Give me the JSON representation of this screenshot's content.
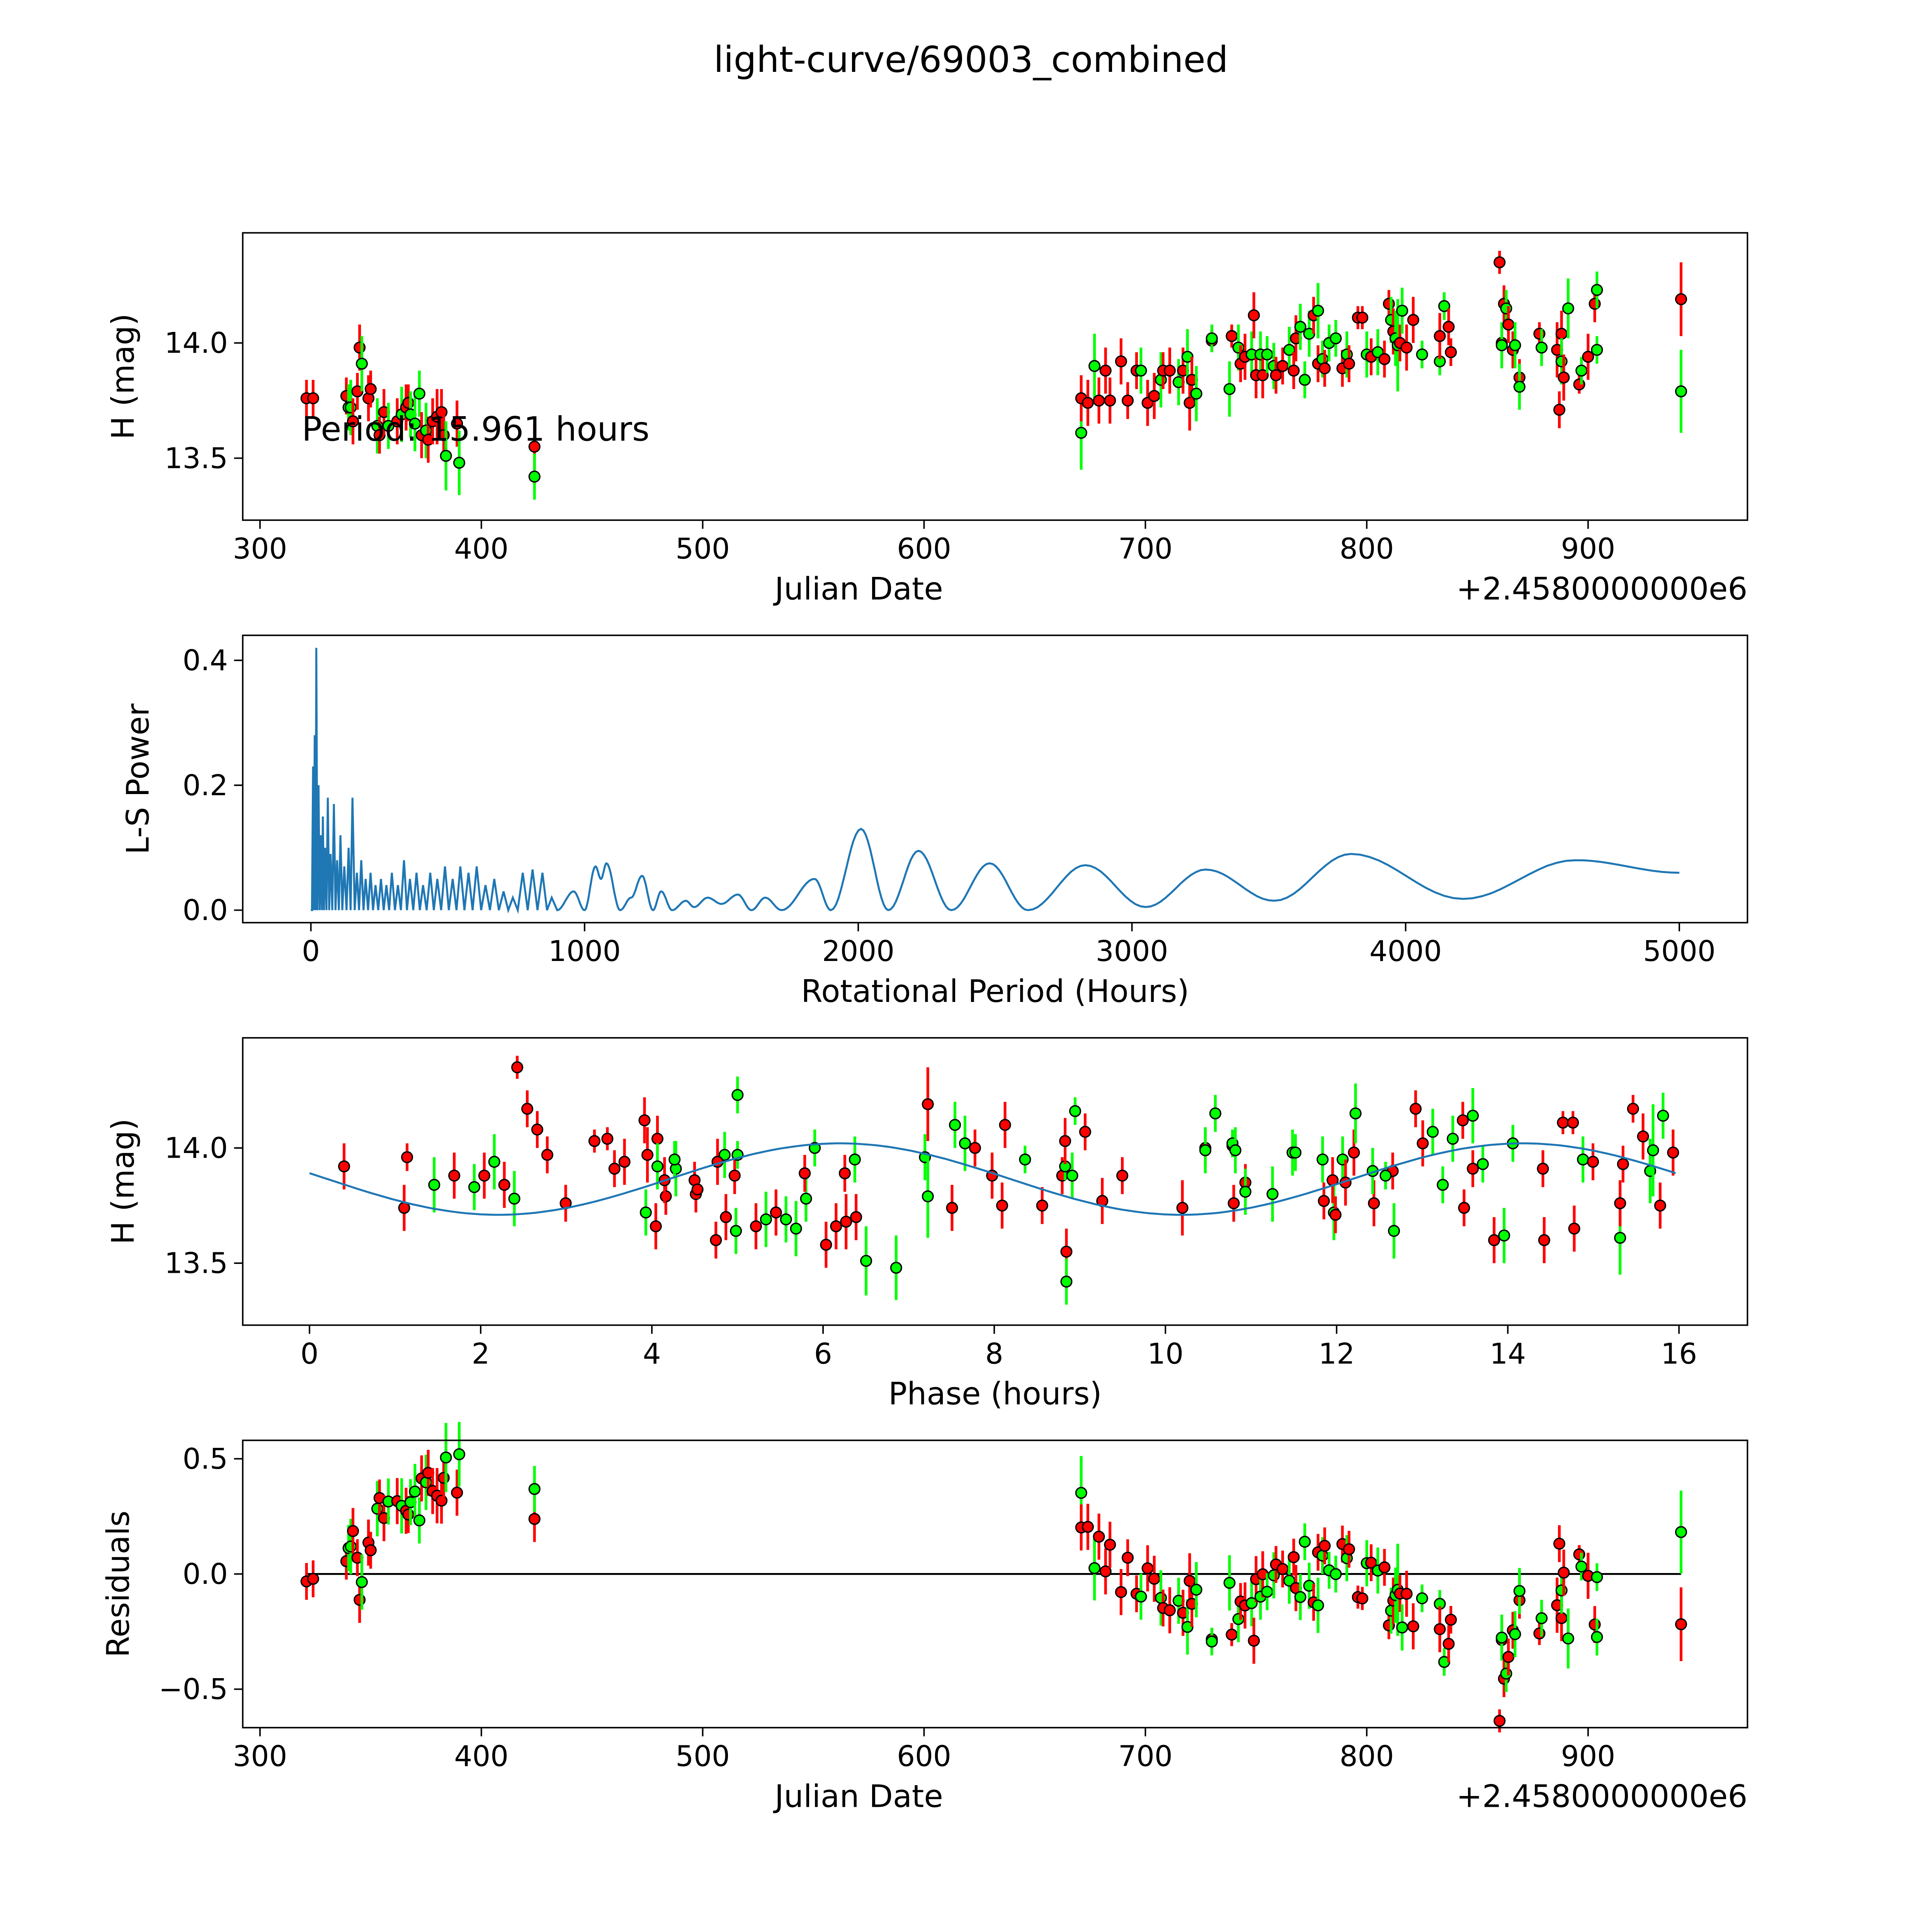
{
  "title": "light-curve/69003_combined",
  "colors": {
    "r": "#ff0000",
    "g": "#00ff00",
    "line": "#1f77b4"
  },
  "chart_data": [
    {
      "type": "scatter",
      "name": "light-curve",
      "xlabel": "Julian Date",
      "ylabel": "H (mag)",
      "offset_text": "+2.4580000000e6",
      "annotation": "Period: 15.961 hours",
      "annotation_at": [
        320,
        13.63
      ],
      "xlim": [
        292.2,
        972
      ],
      "ylim": [
        13.231,
        14.478
      ],
      "xticks": [
        300,
        400,
        500,
        600,
        700,
        800,
        900
      ],
      "xtick_labels": [
        "300",
        "400",
        "500",
        "600",
        "700",
        "800",
        "900"
      ],
      "yticks": [
        13.5,
        14.0
      ],
      "ytick_labels": [
        "13.5",
        "14.0"
      ],
      "points": [
        [
          321,
          13.76,
          0.08,
          "r"
        ],
        [
          324,
          13.76,
          0.08,
          "r"
        ],
        [
          339,
          13.77,
          0.08,
          "r"
        ],
        [
          340,
          13.72,
          0.1,
          "g"
        ],
        [
          341,
          13.72,
          0.12,
          "g"
        ],
        [
          342,
          13.66,
          0.1,
          "r"
        ],
        [
          344,
          13.79,
          0.08,
          "r"
        ],
        [
          345,
          13.98,
          0.1,
          "r"
        ],
        [
          346,
          13.91,
          0.12,
          "g"
        ],
        [
          349,
          13.76,
          0.1,
          "r"
        ],
        [
          350,
          13.8,
          0.08,
          "r"
        ],
        [
          353,
          13.64,
          0.12,
          "g"
        ],
        [
          354,
          13.6,
          0.08,
          "r"
        ],
        [
          356,
          13.7,
          0.1,
          "r"
        ],
        [
          358,
          13.64,
          0.1,
          "g"
        ],
        [
          362,
          13.66,
          0.1,
          "r"
        ],
        [
          364,
          13.69,
          0.12,
          "g"
        ],
        [
          366,
          13.72,
          0.1,
          "r"
        ],
        [
          367,
          13.74,
          0.08,
          "r"
        ],
        [
          368,
          13.69,
          0.1,
          "g"
        ],
        [
          370,
          13.65,
          0.12,
          "g"
        ],
        [
          372,
          13.78,
          0.1,
          "g"
        ],
        [
          373,
          13.6,
          0.1,
          "r"
        ],
        [
          375,
          13.62,
          0.12,
          "g"
        ],
        [
          376,
          13.58,
          0.1,
          "r"
        ],
        [
          378,
          13.66,
          0.1,
          "r"
        ],
        [
          380,
          13.68,
          0.12,
          "r"
        ],
        [
          382,
          13.7,
          0.1,
          "r"
        ],
        [
          383,
          13.6,
          0.1,
          "r"
        ],
        [
          384,
          13.51,
          0.15,
          "g"
        ],
        [
          389,
          13.65,
          0.1,
          "r"
        ],
        [
          390,
          13.48,
          0.14,
          "g"
        ],
        [
          424,
          13.55,
          0.1,
          "r"
        ],
        [
          424,
          13.42,
          0.1,
          "g"
        ],
        [
          671,
          13.61,
          0.16,
          "g"
        ],
        [
          671,
          13.76,
          0.1,
          "r"
        ],
        [
          674,
          13.74,
          0.1,
          "r"
        ],
        [
          677,
          13.9,
          0.14,
          "g"
        ],
        [
          679,
          13.75,
          0.1,
          "r"
        ],
        [
          682,
          13.88,
          0.1,
          "r"
        ],
        [
          684,
          13.75,
          0.1,
          "r"
        ],
        [
          689,
          13.92,
          0.1,
          "r"
        ],
        [
          692,
          13.75,
          0.08,
          "r"
        ],
        [
          696,
          13.88,
          0.08,
          "r"
        ],
        [
          698,
          13.88,
          0.1,
          "g"
        ],
        [
          701,
          13.74,
          0.1,
          "r"
        ],
        [
          704,
          13.77,
          0.1,
          "r"
        ],
        [
          707,
          13.84,
          0.12,
          "g"
        ],
        [
          708,
          13.88,
          0.08,
          "r"
        ],
        [
          711,
          13.88,
          0.1,
          "r"
        ],
        [
          715,
          13.83,
          0.1,
          "g"
        ],
        [
          717,
          13.88,
          0.1,
          "r"
        ],
        [
          719,
          13.94,
          0.12,
          "g"
        ],
        [
          720,
          13.74,
          0.12,
          "r"
        ],
        [
          721,
          13.84,
          0.1,
          "r"
        ],
        [
          723,
          13.78,
          0.12,
          "g"
        ],
        [
          730,
          14.01,
          0.05,
          "r"
        ],
        [
          730,
          14.02,
          0.06,
          "g"
        ],
        [
          738,
          13.8,
          0.12,
          "g"
        ],
        [
          739,
          14.03,
          0.05,
          "r"
        ],
        [
          742,
          13.98,
          0.1,
          "g"
        ],
        [
          743,
          13.91,
          0.08,
          "r"
        ],
        [
          745,
          13.94,
          0.1,
          "r"
        ],
        [
          748,
          13.95,
          0.1,
          "g"
        ],
        [
          749,
          14.12,
          0.1,
          "r"
        ],
        [
          750,
          13.86,
          0.1,
          "r"
        ],
        [
          752,
          13.95,
          0.1,
          "g"
        ],
        [
          753,
          13.86,
          0.1,
          "r"
        ],
        [
          755,
          13.95,
          0.08,
          "g"
        ],
        [
          758,
          13.9,
          0.1,
          "g"
        ],
        [
          759,
          13.86,
          0.08,
          "r"
        ],
        [
          762,
          13.9,
          0.08,
          "r"
        ],
        [
          765,
          13.97,
          0.1,
          "g"
        ],
        [
          767,
          13.88,
          0.08,
          "r"
        ],
        [
          768,
          14.02,
          0.1,
          "r"
        ],
        [
          770,
          14.07,
          0.1,
          "g"
        ],
        [
          772,
          13.84,
          0.08,
          "g"
        ],
        [
          774,
          14.04,
          0.1,
          "g"
        ],
        [
          776,
          14.12,
          0.08,
          "r"
        ],
        [
          778,
          14.14,
          0.12,
          "g"
        ],
        [
          778,
          13.91,
          0.08,
          "r"
        ],
        [
          780,
          13.93,
          0.08,
          "g"
        ],
        [
          781,
          13.89,
          0.08,
          "r"
        ],
        [
          783,
          14.0,
          0.08,
          "g"
        ],
        [
          786,
          14.02,
          0.08,
          "g"
        ],
        [
          789,
          13.89,
          0.08,
          "r"
        ],
        [
          791,
          13.95,
          0.1,
          "g"
        ],
        [
          792,
          13.91,
          0.08,
          "r"
        ],
        [
          796,
          14.11,
          0.05,
          "r"
        ],
        [
          798,
          14.11,
          0.05,
          "r"
        ],
        [
          800,
          13.95,
          0.1,
          "g"
        ],
        [
          802,
          13.94,
          0.08,
          "r"
        ],
        [
          805,
          13.96,
          0.1,
          "g"
        ],
        [
          808,
          13.93,
          0.08,
          "r"
        ],
        [
          810,
          14.17,
          0.06,
          "r"
        ],
        [
          811,
          14.1,
          0.1,
          "g"
        ],
        [
          812,
          14.05,
          0.1,
          "r"
        ],
        [
          813,
          14.02,
          0.12,
          "g"
        ],
        [
          814,
          13.99,
          0.2,
          "g"
        ],
        [
          815,
          14.0,
          0.08,
          "r"
        ],
        [
          816,
          14.14,
          0.1,
          "g"
        ],
        [
          818,
          13.98,
          0.1,
          "r"
        ],
        [
          821,
          14.1,
          0.1,
          "r"
        ],
        [
          825,
          13.95,
          0.06,
          "g"
        ],
        [
          833,
          13.92,
          0.06,
          "g"
        ],
        [
          833,
          14.03,
          0.1,
          "r"
        ],
        [
          835,
          14.16,
          0.06,
          "g"
        ],
        [
          837,
          14.07,
          0.08,
          "r"
        ],
        [
          838,
          13.96,
          0.06,
          "r"
        ],
        [
          860,
          14.35,
          0.05,
          "r"
        ],
        [
          861,
          14.0,
          0.08,
          "r"
        ],
        [
          861,
          13.99,
          0.1,
          "g"
        ],
        [
          862,
          14.17,
          0.08,
          "r"
        ],
        [
          863,
          14.15,
          0.08,
          "g"
        ],
        [
          864,
          14.08,
          0.08,
          "r"
        ],
        [
          866,
          13.97,
          0.08,
          "r"
        ],
        [
          867,
          13.99,
          0.1,
          "g"
        ],
        [
          869,
          13.85,
          0.08,
          "r"
        ],
        [
          869,
          13.81,
          0.1,
          "g"
        ],
        [
          878,
          14.04,
          0.05,
          "r"
        ],
        [
          879,
          13.98,
          0.08,
          "g"
        ],
        [
          886,
          13.97,
          0.12,
          "r"
        ],
        [
          887,
          13.71,
          0.08,
          "r"
        ],
        [
          888,
          14.04,
          0.1,
          "r"
        ],
        [
          888,
          13.92,
          0.1,
          "g"
        ],
        [
          889,
          13.85,
          0.1,
          "r"
        ],
        [
          891,
          14.15,
          0.13,
          "g"
        ],
        [
          896,
          13.82,
          0.04,
          "r"
        ],
        [
          897,
          13.88,
          0.06,
          "g"
        ],
        [
          900,
          13.94,
          0.1,
          "r"
        ],
        [
          903,
          14.17,
          0.08,
          "r"
        ],
        [
          904,
          14.23,
          0.08,
          "g"
        ],
        [
          904,
          13.97,
          0.06,
          "g"
        ],
        [
          942,
          14.19,
          0.16,
          "r"
        ],
        [
          942,
          13.79,
          0.18,
          "g"
        ]
      ]
    },
    {
      "type": "line",
      "name": "periodogram",
      "xlabel": "Rotational Period (Hours)",
      "ylabel": "L-S Power",
      "xlim": [
        -249,
        5249
      ],
      "ylim": [
        -0.02,
        0.44
      ],
      "xticks": [
        0,
        1000,
        2000,
        3000,
        4000,
        5000
      ],
      "xtick_labels": [
        "0",
        "1000",
        "2000",
        "3000",
        "4000",
        "5000"
      ],
      "yticks": [
        0.0,
        0.2,
        0.4
      ],
      "ytick_labels": [
        "0.0",
        "0.2",
        "0.4"
      ],
      "dense_peaks": [
        [
          8,
          0.23
        ],
        [
          14,
          0.28
        ],
        [
          20,
          0.42
        ],
        [
          28,
          0.2
        ],
        [
          36,
          0.12
        ],
        [
          44,
          0.15
        ],
        [
          52,
          0.1
        ],
        [
          62,
          0.18
        ],
        [
          72,
          0.09
        ],
        [
          84,
          0.17
        ],
        [
          96,
          0.08
        ],
        [
          108,
          0.12
        ],
        [
          122,
          0.07
        ],
        [
          138,
          0.1
        ],
        [
          152,
          0.18
        ],
        [
          168,
          0.06
        ],
        [
          184,
          0.08
        ],
        [
          200,
          0.05
        ],
        [
          218,
          0.06
        ],
        [
          236,
          0.04
        ],
        [
          256,
          0.05
        ],
        [
          276,
          0.04
        ],
        [
          296,
          0.06
        ],
        [
          318,
          0.04
        ],
        [
          340,
          0.08
        ],
        [
          362,
          0.05
        ],
        [
          386,
          0.06
        ],
        [
          410,
          0.04
        ],
        [
          436,
          0.06
        ],
        [
          462,
          0.05
        ],
        [
          490,
          0.07
        ],
        [
          518,
          0.05
        ],
        [
          546,
          0.07
        ],
        [
          576,
          0.06
        ],
        [
          606,
          0.07
        ],
        [
          638,
          0.04
        ],
        [
          670,
          0.05
        ],
        [
          704,
          0.03
        ],
        [
          738,
          0.02
        ],
        [
          774,
          0.06
        ],
        [
          810,
          0.065
        ],
        [
          846,
          0.06
        ],
        [
          880,
          0.02
        ]
      ],
      "smooth_extrema": [
        [
          900,
          0.0
        ],
        [
          960,
          0.03
        ],
        [
          1000,
          0.0
        ],
        [
          1040,
          0.07
        ],
        [
          1060,
          0.05
        ],
        [
          1080,
          0.075
        ],
        [
          1130,
          0.0
        ],
        [
          1170,
          0.02
        ],
        [
          1210,
          0.055
        ],
        [
          1250,
          0.0
        ],
        [
          1280,
          0.03
        ],
        [
          1320,
          0.0
        ],
        [
          1370,
          0.015
        ],
        [
          1400,
          0.005
        ],
        [
          1450,
          0.02
        ],
        [
          1500,
          0.01
        ],
        [
          1560,
          0.025
        ],
        [
          1610,
          0.0
        ],
        [
          1660,
          0.02
        ],
        [
          1720,
          0.0
        ],
        [
          1840,
          0.05
        ],
        [
          1900,
          0.0
        ],
        [
          2010,
          0.13
        ],
        [
          2110,
          0.0
        ],
        [
          2220,
          0.095
        ],
        [
          2340,
          0.0
        ],
        [
          2480,
          0.075
        ],
        [
          2620,
          0.0
        ],
        [
          2830,
          0.072
        ],
        [
          3050,
          0.005
        ],
        [
          3270,
          0.065
        ],
        [
          3520,
          0.015
        ],
        [
          3800,
          0.09
        ],
        [
          4210,
          0.018
        ],
        [
          4620,
          0.08
        ],
        [
          5000,
          0.06
        ]
      ]
    },
    {
      "type": "scatter",
      "name": "phased-light-curve",
      "xlabel": "Phase (hours)",
      "ylabel": "H (mag)",
      "period_hours": 15.961,
      "model": {
        "mean": 13.865,
        "amplitude": 0.155,
        "phase_shift": 4.2,
        "harmonic_period": 7.98
      },
      "xlim": [
        -0.78,
        16.8
      ],
      "ylim": [
        13.231,
        14.478
      ],
      "xticks": [
        0,
        2,
        4,
        6,
        8,
        10,
        12,
        14,
        16
      ],
      "xtick_labels": [
        "0",
        "2",
        "4",
        "6",
        "8",
        "10",
        "12",
        "14",
        "16"
      ],
      "yticks": [
        13.5,
        14.0
      ],
      "ytick_labels": [
        "13.5",
        "14.0"
      ]
    },
    {
      "type": "scatter",
      "name": "residuals",
      "xlabel": "Julian Date",
      "ylabel": "Residuals",
      "offset_text": "+2.4580000000e6",
      "xlim": [
        292.2,
        972
      ],
      "ylim": [
        -0.667,
        0.58
      ],
      "xticks": [
        300,
        400,
        500,
        600,
        700,
        800,
        900
      ],
      "xtick_labels": [
        "300",
        "400",
        "500",
        "600",
        "700",
        "800",
        "900"
      ],
      "yticks": [
        -0.5,
        0.0,
        0.5
      ],
      "ytick_labels": [
        "−0.5",
        "0.0",
        "0.5"
      ]
    }
  ]
}
